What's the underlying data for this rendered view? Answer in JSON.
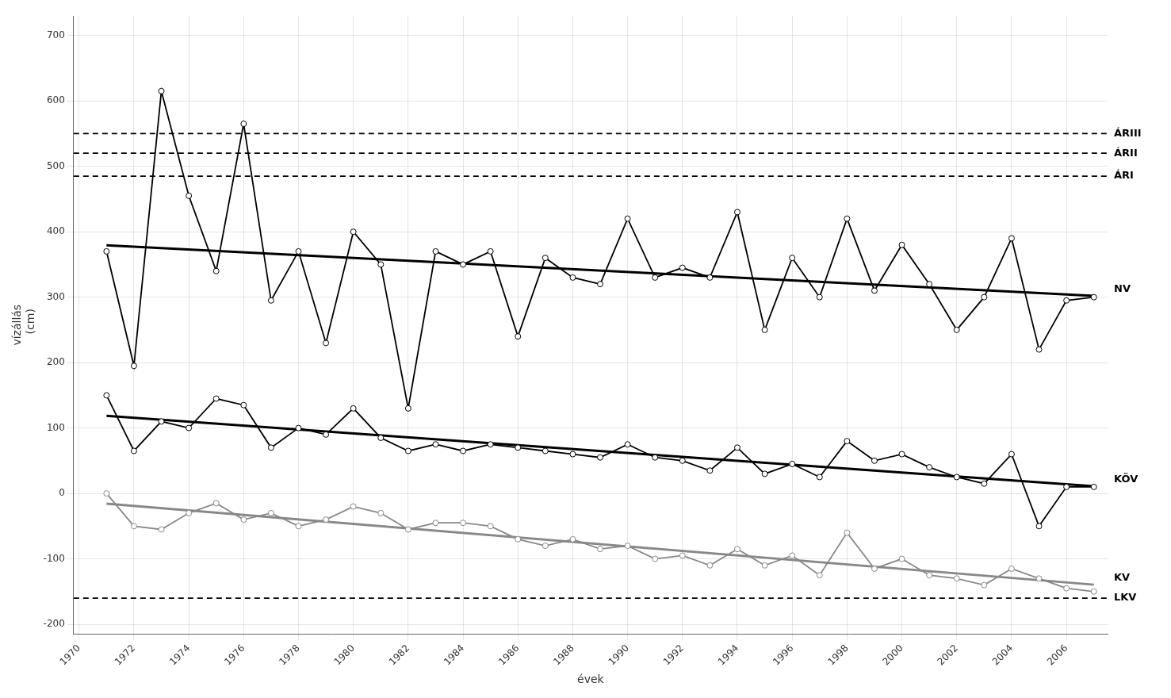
{
  "chart_data": {
    "type": "line",
    "xlabel": "évek",
    "ylabel": [
      "vízállás",
      "  (cm)"
    ],
    "x": [
      1971,
      1972,
      1973,
      1974,
      1975,
      1976,
      1977,
      1978,
      1979,
      1980,
      1981,
      1982,
      1983,
      1984,
      1985,
      1986,
      1987,
      1988,
      1989,
      1990,
      1991,
      1992,
      1993,
      1994,
      1995,
      1996,
      1997,
      1998,
      1999,
      2000,
      2001,
      2002,
      2003,
      2004,
      2005,
      2006,
      2007
    ],
    "series": [
      {
        "name": "NV",
        "color": "#000000",
        "marker": "circle",
        "values": [
          370,
          195,
          615,
          455,
          340,
          565,
          295,
          370,
          230,
          400,
          350,
          130,
          370,
          350,
          370,
          240,
          360,
          330,
          320,
          420,
          330,
          345,
          330,
          430,
          250,
          360,
          300,
          420,
          310,
          380,
          320,
          250,
          300,
          390,
          220,
          295,
          300
        ],
        "trend": {
          "x": [
            1971,
            2007
          ],
          "values": [
            379.27,
            302.08
          ],
          "color": "#000000"
        }
      },
      {
        "name": "KÖV",
        "color": "#000000",
        "marker": "circle",
        "values": [
          150,
          65,
          110,
          100,
          145,
          135,
          70,
          100,
          90,
          130,
          85,
          65,
          75,
          65,
          75,
          70,
          65,
          60,
          55,
          75,
          55,
          50,
          35,
          70,
          30,
          45,
          25,
          80,
          50,
          60,
          40,
          25,
          15,
          60,
          -50,
          10,
          10
        ],
        "trend": {
          "x": [
            1971,
            2007
          ],
          "values": [
            118.52,
            10.94
          ],
          "color": "#000000"
        }
      },
      {
        "name": "KV",
        "color": "#888888",
        "marker": "circle",
        "values": [
          0,
          -50,
          -55,
          -30,
          -15,
          -40,
          -30,
          -50,
          -40,
          -20,
          -30,
          -55,
          -45,
          -45,
          -50,
          -70,
          -80,
          -70,
          -85,
          -80,
          -100,
          -95,
          -110,
          -85,
          -110,
          -95,
          -125,
          -60,
          -115,
          -100,
          -125,
          -130,
          -140,
          -115,
          -130,
          -145,
          -150
        ],
        "trend": {
          "x": [
            1971,
            2007
          ],
          "values": [
            -15.67,
            -139.47
          ],
          "color": "#888888"
        }
      }
    ],
    "reference_lines": [
      {
        "value": 550,
        "label": "ÁRIII",
        "color": "#000000",
        "line_style": "dashed"
      },
      {
        "value": 520,
        "label": "ÁRII",
        "color": "#000000",
        "line_style": "dashed"
      },
      {
        "value": 485,
        "label": "ÁRI",
        "color": "#000000",
        "line_style": "dashed"
      },
      {
        "value": -160,
        "label": "LKV",
        "color": "#000000",
        "line_style": "dashed"
      }
    ],
    "xlim": [
      1969.8,
      2007.5
    ],
    "xticks": [
      1970,
      1972,
      1974,
      1976,
      1978,
      1980,
      1982,
      1984,
      1986,
      1988,
      1990,
      1992,
      1994,
      1996,
      1998,
      2000,
      2002,
      2004,
      2006
    ],
    "ylim": [
      -215,
      730
    ],
    "yticks": [
      -200,
      -100,
      0,
      100,
      200,
      300,
      400,
      500,
      600,
      700
    ],
    "grid": true
  }
}
